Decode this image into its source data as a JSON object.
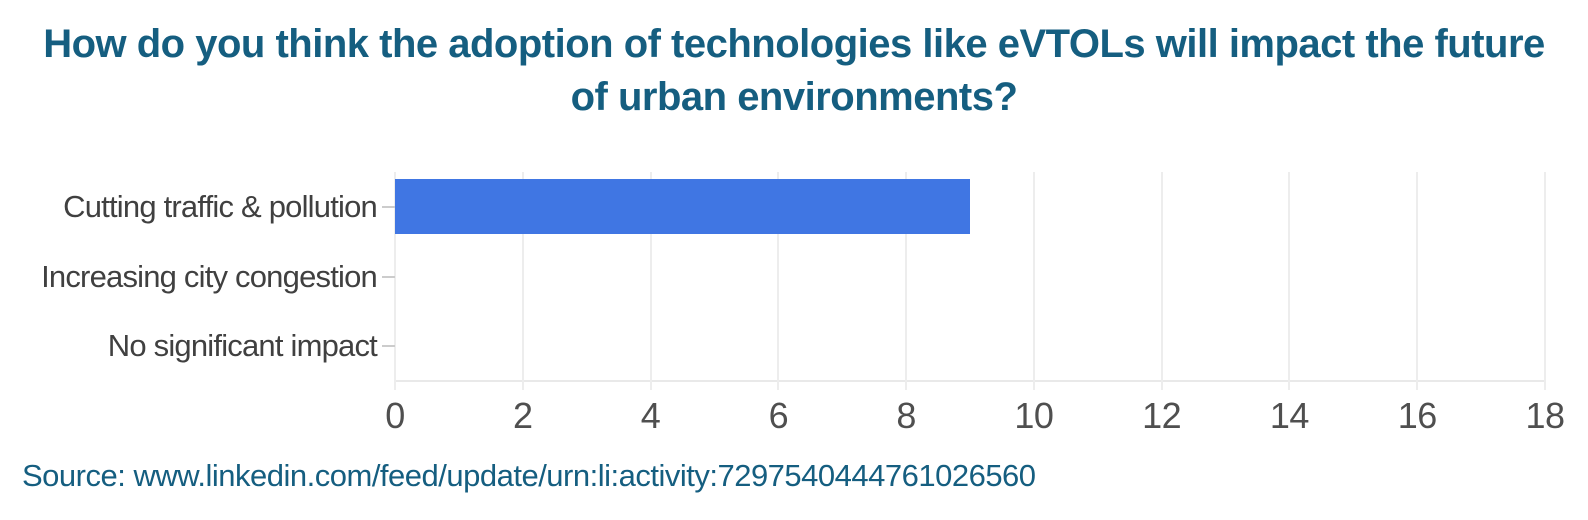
{
  "chart_data": {
    "type": "bar",
    "orientation": "horizontal",
    "title": "How do you think the adoption of technologies like eVTOLs will impact the future of urban environments?",
    "categories": [
      "Cutting traffic & pollution",
      "Increasing city congestion",
      "No significant impact"
    ],
    "values": [
      9,
      0,
      0
    ],
    "xlabel": "",
    "ylabel": "",
    "xlim": [
      0,
      18
    ],
    "xticks": [
      0,
      2,
      4,
      6,
      8,
      10,
      12,
      14,
      16,
      18
    ],
    "grid": "vertical light gridlines at even ticks",
    "legend": "none",
    "colors": {
      "bar": "#4076e3",
      "title": "#155e80",
      "category_label": "#404040",
      "tick_label": "#4f4f4f",
      "gridline": "#ededed",
      "axis_line": "#e9e9e9",
      "y_tick": "#cccccc",
      "background": "#ffffff"
    }
  },
  "source": {
    "text": "Source: www.linkedin.com/feed/update/urn:li:activity:7297540444761026560"
  }
}
